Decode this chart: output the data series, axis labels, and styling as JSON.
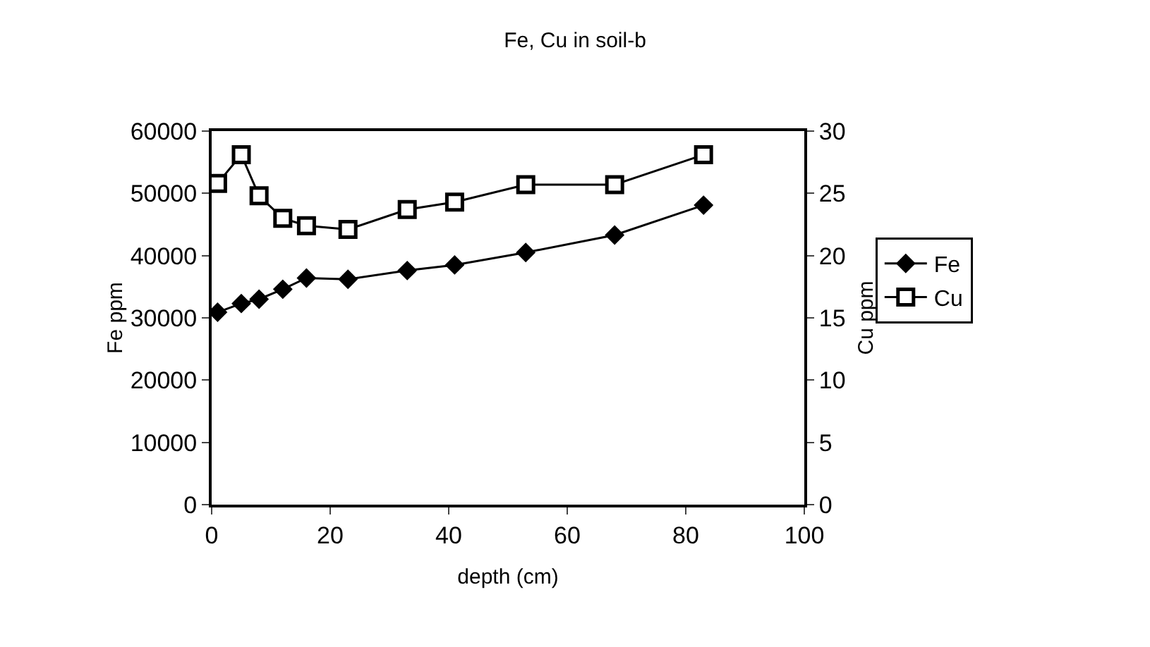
{
  "chart_data": {
    "type": "line",
    "title": "Fe, Cu in soil-b",
    "xlabel": "depth (cm)",
    "ylabel": "Fe ppm",
    "y2label": "Cu ppm",
    "x": [
      1,
      5,
      8,
      12,
      16,
      23,
      33,
      41,
      53,
      68,
      83
    ],
    "series": [
      {
        "name": "Fe",
        "color": "#000000",
        "marker": "diamond",
        "values": [
          30900,
          32300,
          33000,
          34600,
          36400,
          36200,
          37600,
          38500,
          40500,
          43300,
          48100
        ]
      },
      {
        "name": "Cu",
        "color": "#000000",
        "marker": "square",
        "axis": "y2",
        "values": [
          25.8,
          28.1,
          24.8,
          23.0,
          22.4,
          22.1,
          23.7,
          24.3,
          25.7,
          25.7,
          28.1
        ]
      }
    ],
    "xlim": [
      0,
      100
    ],
    "xticks": [
      0,
      20,
      40,
      60,
      80,
      100
    ],
    "ylim": [
      0,
      60000
    ],
    "yticks": [
      0,
      10000,
      20000,
      30000,
      40000,
      50000,
      60000
    ],
    "y2lim": [
      0,
      30
    ],
    "y2ticks": [
      0,
      5,
      10,
      15,
      20,
      25,
      30
    ],
    "grid": false,
    "legend": "right",
    "line_style": "solid"
  }
}
